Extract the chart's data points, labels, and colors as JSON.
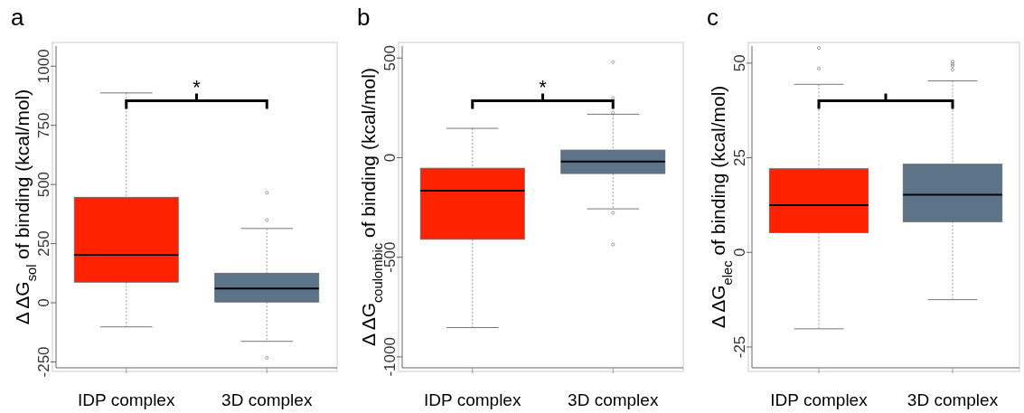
{
  "chart_data": [
    {
      "type": "box",
      "title": "a",
      "ylabel": "Δ ΔG$_{sol}$ of binding (kcal/mol)",
      "categories": [
        "IDP complex",
        "3D complex"
      ],
      "colors": [
        "#ff2200",
        "#5d7488"
      ],
      "ylim": [
        -275,
        1085
      ],
      "yticks": [
        -250,
        0,
        250,
        500,
        750,
        1000
      ],
      "annotations": [
        "*"
      ],
      "boxes": [
        {
          "low": -102,
          "q1": 87,
          "median": 203,
          "q3": 446,
          "high": 887
        },
        {
          "low": -163,
          "q1": 3,
          "median": 60,
          "q3": 125,
          "high": 314,
          "outliers": [
            465,
            350,
            -232
          ]
        }
      ]
    },
    {
      "type": "box",
      "title": "b",
      "ylabel": "Δ ΔG$_{coulombic}$ of binding (kcal/mol)",
      "categories": [
        "IDP complex",
        "3D complex"
      ],
      "colors": [
        "#ff2200",
        "#5d7488"
      ],
      "ylim": [
        -1055,
        560
      ],
      "yticks": [
        -1000,
        -500,
        0,
        500
      ],
      "annotations": [
        "*"
      ],
      "boxes": [
        {
          "low": -853,
          "q1": -410,
          "median": -166,
          "q3": -53,
          "high": 147
        },
        {
          "low": -257,
          "q1": -80,
          "median": -20,
          "q3": 38,
          "high": 218,
          "outliers": [
            480,
            299,
            226,
            -277,
            -436
          ]
        }
      ]
    },
    {
      "type": "box",
      "title": "c",
      "ylabel": "Δ ΔG$_{elec}$ of binding (kcal/mol)",
      "categories": [
        "IDP complex",
        "3D complex"
      ],
      "colors": [
        "#ff2200",
        "#5d7488"
      ],
      "ylim": [
        -30.5,
        54.5
      ],
      "yticks": [
        -25,
        0,
        25,
        50
      ],
      "boxes": [
        {
          "low": -20.2,
          "q1": 5.2,
          "median": 12.5,
          "q3": 22.1,
          "high": 44.4,
          "outliers": [
            54.0,
            48.6
          ]
        },
        {
          "low": -12.5,
          "q1": 8.1,
          "median": 15.2,
          "q3": 23.3,
          "high": 45.3,
          "outliers": [
            50.4,
            49.8,
            49.3,
            48.3
          ]
        }
      ]
    }
  ]
}
